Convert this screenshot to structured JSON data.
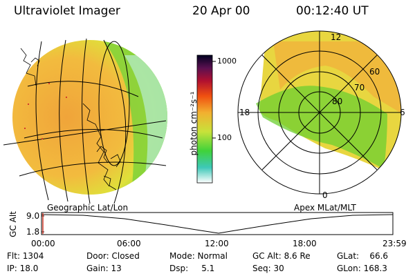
{
  "header": {
    "title": "Ultraviolet Imager",
    "date": "20 Apr 00",
    "time": "00:12:40 UT"
  },
  "colorbar": {
    "unit_label": "photon cm⁻²s⁻¹",
    "tick_top": "1000",
    "tick_mid": "100"
  },
  "polar": {
    "mlt_labels": {
      "top": "12",
      "left": "18",
      "right": "6",
      "bottom": "0"
    },
    "lat_labels": [
      "60",
      "70",
      "80"
    ]
  },
  "projections": {
    "left": "Geographic Lat/Lon",
    "right": "Apex MLat/MLT"
  },
  "timeline": {
    "ylabel": "GC Alt",
    "y_top": "9.0",
    "y_bottom": "1.8",
    "x_ticks": [
      "00:00",
      "06:00",
      "12:00",
      "18:00",
      "23:59"
    ]
  },
  "status": {
    "flt": "Flt: 1304",
    "ip": "IP: 18.0",
    "door": "Door: Closed",
    "gain": "Gain: 13",
    "mode": "Mode: Normal",
    "dsp": "Dsp:     5.1",
    "gcalt": "GC Alt: 8.6 Re",
    "seq": "Seq: 30",
    "glat": "GLat:    66.6",
    "glon": "GLon: 168.3"
  },
  "colors": {
    "globe_fill": "#f1b33a",
    "green": "#6fcf2d",
    "yellow": "#e6e23a",
    "red_marker": "#d23a2a"
  }
}
